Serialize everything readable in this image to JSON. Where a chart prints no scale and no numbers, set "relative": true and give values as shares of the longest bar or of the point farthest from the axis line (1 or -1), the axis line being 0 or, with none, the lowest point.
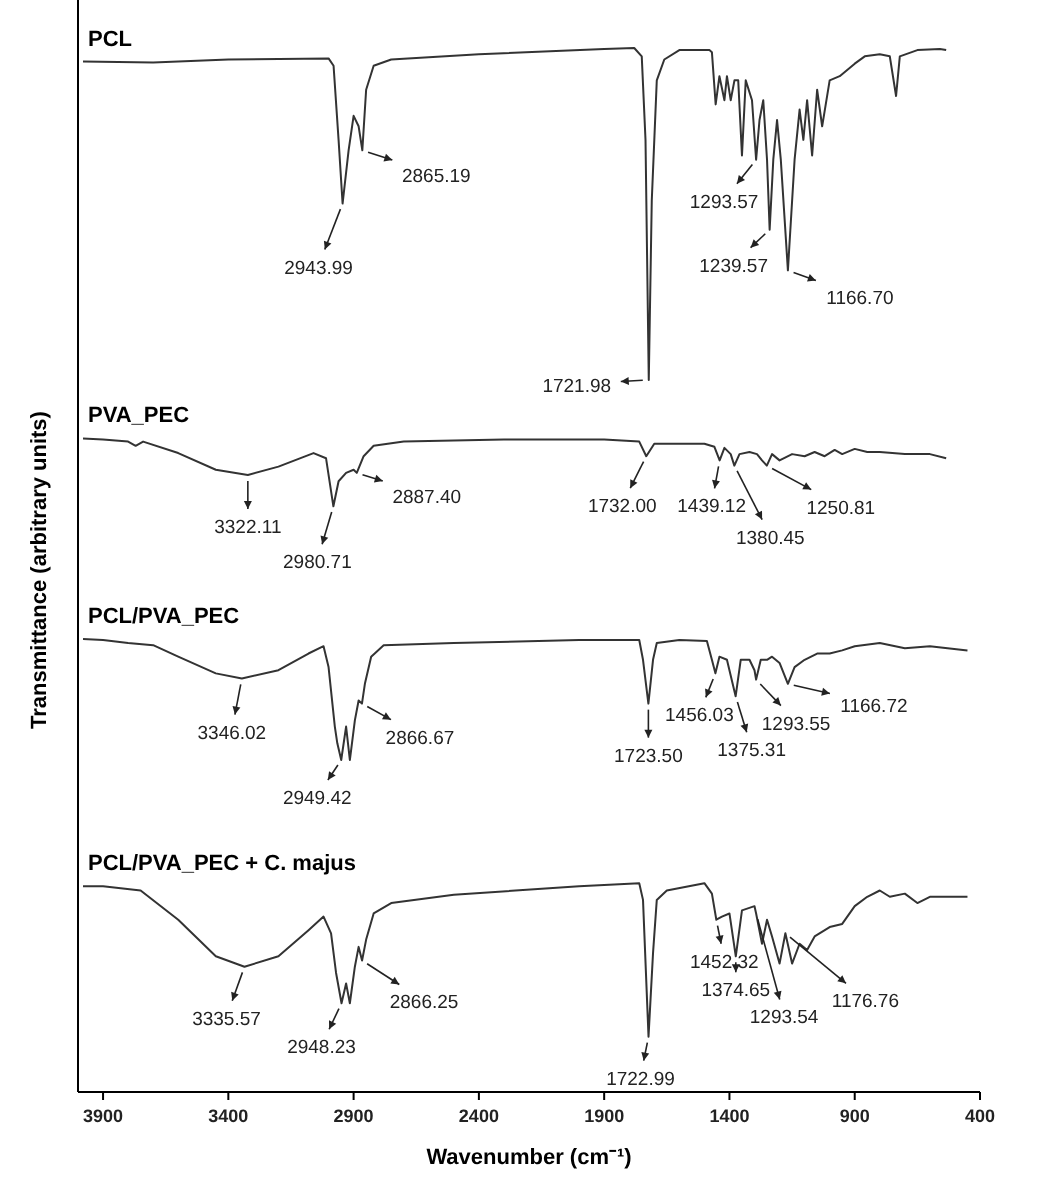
{
  "chart_data": {
    "type": "line",
    "relative": true,
    "xlabel": "Wavenumber (cm⁻¹)",
    "ylabel": "Transmittance (arbitrary units)",
    "xlim": [
      4000,
      400
    ],
    "xticks": [
      3900,
      3400,
      2900,
      2400,
      1900,
      1400,
      900,
      400
    ],
    "marker": "none",
    "series": [
      {
        "name": "PCL",
        "color": "#333333",
        "x": [
          3980,
          3700,
          3400,
          3000,
          2980,
          2960,
          2943.99,
          2920,
          2900,
          2880,
          2865.19,
          2850,
          2820,
          2750,
          2400,
          1900,
          1780,
          1750,
          1735,
          1721.98,
          1710,
          1690,
          1660,
          1600,
          1480,
          1470,
          1455,
          1440,
          1420,
          1410,
          1395,
          1380,
          1365,
          1350,
          1335,
          1310,
          1293.57,
          1280,
          1265,
          1250,
          1239.57,
          1225,
          1210,
          1195,
          1166.7,
          1140,
          1120,
          1105,
          1090,
          1070,
          1050,
          1030,
          1000,
          960,
          900,
          860,
          800,
          760,
          735,
          720,
          650,
          560,
          535
        ],
        "values": [
          0.987,
          0.986,
          0.989,
          0.99,
          0.983,
          0.912,
          0.851,
          0.902,
          0.935,
          0.925,
          0.902,
          0.96,
          0.983,
          0.989,
          0.994,
          0.999,
          1,
          0.992,
          0.912,
          0.682,
          0.854,
          0.969,
          0.989,
          0.998,
          0.998,
          0.996,
          0.946,
          0.973,
          0.95,
          0.973,
          0.95,
          0.969,
          0.969,
          0.897,
          0.969,
          0.95,
          0.893,
          0.931,
          0.95,
          0.893,
          0.826,
          0.893,
          0.931,
          0.893,
          0.787,
          0.893,
          0.941,
          0.912,
          0.95,
          0.897,
          0.96,
          0.925,
          0.969,
          0.973,
          0.985,
          0.992,
          0.994,
          0.992,
          0.954,
          0.992,
          0.998,
          0.999,
          0.998
        ]
      },
      {
        "name": "PVA_PEC",
        "color": "#333333",
        "x": [
          3980,
          3900,
          3800,
          3770,
          3740,
          3600,
          3450,
          3322.11,
          3200,
          3060,
          3010,
          2980.71,
          2960,
          2930,
          2900,
          2887.4,
          2860,
          2820,
          2700,
          2300,
          1900,
          1760,
          1732,
          1700,
          1500,
          1460,
          1439.12,
          1420,
          1395,
          1380.45,
          1360,
          1320,
          1290,
          1270,
          1250.81,
          1230,
          1200,
          1150,
          1100,
          1060,
          1020,
          980,
          950,
          900,
          850,
          800,
          700,
          600,
          535
        ],
        "values": [
          0.626,
          0.625,
          0.623,
          0.619,
          0.623,
          0.612,
          0.596,
          0.591,
          0.599,
          0.612,
          0.607,
          0.561,
          0.585,
          0.593,
          0.596,
          0.593,
          0.609,
          0.619,
          0.623,
          0.625,
          0.625,
          0.623,
          0.609,
          0.621,
          0.621,
          0.618,
          0.605,
          0.617,
          0.611,
          0.6,
          0.611,
          0.613,
          0.611,
          0.605,
          0.6,
          0.611,
          0.605,
          0.611,
          0.609,
          0.613,
          0.609,
          0.615,
          0.611,
          0.616,
          0.613,
          0.613,
          0.611,
          0.611,
          0.607
        ]
      },
      {
        "name": "PCL/PVA_PEC",
        "color": "#333333",
        "x": [
          3980,
          3900,
          3800,
          3700,
          3600,
          3450,
          3346.02,
          3200,
          3080,
          3020,
          3000,
          2975,
          2965,
          2949.42,
          2930,
          2915,
          2895,
          2880,
          2866.67,
          2855,
          2830,
          2780,
          2500,
          2000,
          1760,
          1745,
          1723.5,
          1705,
          1690,
          1600,
          1490,
          1470,
          1456.03,
          1440,
          1410,
          1375.31,
          1355,
          1320,
          1300,
          1293.55,
          1275,
          1250,
          1230,
          1200,
          1166.72,
          1140,
          1100,
          1050,
          1000,
          950,
          900,
          800,
          700,
          600,
          450
        ],
        "values": [
          0.434,
          0.433,
          0.43,
          0.428,
          0.417,
          0.401,
          0.396,
          0.404,
          0.42,
          0.427,
          0.407,
          0.35,
          0.334,
          0.318,
          0.35,
          0.318,
          0.356,
          0.375,
          0.372,
          0.391,
          0.417,
          0.428,
          0.43,
          0.433,
          0.433,
          0.414,
          0.372,
          0.414,
          0.43,
          0.433,
          0.432,
          0.414,
          0.401,
          0.417,
          0.414,
          0.379,
          0.414,
          0.414,
          0.404,
          0.395,
          0.414,
          0.414,
          0.417,
          0.411,
          0.391,
          0.407,
          0.414,
          0.42,
          0.42,
          0.423,
          0.427,
          0.43,
          0.425,
          0.427,
          0.423
        ]
      },
      {
        "name": "PCL/PVA_PEC + C. majus",
        "color": "#333333",
        "x": [
          3980,
          3900,
          3750,
          3600,
          3450,
          3335.57,
          3200,
          3080,
          3020,
          2990,
          2970,
          2948.23,
          2930,
          2915,
          2895,
          2880,
          2866.25,
          2850,
          2820,
          2750,
          2500,
          2000,
          1760,
          1745,
          1722.99,
          1705,
          1690,
          1650,
          1500,
          1470,
          1452.32,
          1430,
          1400,
          1374.65,
          1350,
          1300,
          1293.54,
          1270,
          1250,
          1230,
          1200,
          1176.76,
          1150,
          1120,
          1090,
          1060,
          1000,
          950,
          900,
          850,
          800,
          760,
          700,
          650,
          600,
          450
        ],
        "values": [
          0.197,
          0.197,
          0.193,
          0.165,
          0.13,
          0.12,
          0.13,
          0.155,
          0.168,
          0.152,
          0.114,
          0.085,
          0.104,
          0.085,
          0.12,
          0.139,
          0.126,
          0.146,
          0.171,
          0.181,
          0.189,
          0.197,
          0.2,
          0.184,
          0.053,
          0.133,
          0.184,
          0.193,
          0.2,
          0.19,
          0.165,
          0.168,
          0.171,
          0.13,
          0.174,
          0.178,
          0.171,
          0.142,
          0.165,
          0.149,
          0.123,
          0.152,
          0.123,
          0.142,
          0.136,
          0.149,
          0.158,
          0.161,
          0.178,
          0.187,
          0.193,
          0.187,
          0.19,
          0.181,
          0.187,
          0.187
        ]
      }
    ],
    "annotations": [
      {
        "text": "2865.19",
        "x": 2865.19,
        "y": 0.902
      },
      {
        "text": "2943.99",
        "x": 2943.99,
        "y": 0.851
      },
      {
        "text": "1721.98",
        "x": 1721.98,
        "y": 0.682
      },
      {
        "text": "1293.57",
        "x": 1293.57,
        "y": 0.893
      },
      {
        "text": "1239.57",
        "x": 1239.57,
        "y": 0.826
      },
      {
        "text": "1166.70",
        "x": 1166.7,
        "y": 0.787
      },
      {
        "text": "3322.11",
        "x": 3322.11,
        "y": 0.591
      },
      {
        "text": "2980.71",
        "x": 2980.71,
        "y": 0.561
      },
      {
        "text": "2887.40",
        "x": 2887.4,
        "y": 0.593
      },
      {
        "text": "1732.00",
        "x": 1732.0,
        "y": 0.609
      },
      {
        "text": "1439.12",
        "x": 1439.12,
        "y": 0.605
      },
      {
        "text": "1380.45",
        "x": 1380.45,
        "y": 0.6
      },
      {
        "text": "1250.81",
        "x": 1250.81,
        "y": 0.6
      },
      {
        "text": "3346.02",
        "x": 3346.02,
        "y": 0.396
      },
      {
        "text": "2949.42",
        "x": 2949.42,
        "y": 0.318
      },
      {
        "text": "2866.67",
        "x": 2866.67,
        "y": 0.372
      },
      {
        "text": "1723.50",
        "x": 1723.5,
        "y": 0.372
      },
      {
        "text": "1456.03",
        "x": 1456.03,
        "y": 0.401
      },
      {
        "text": "1375.31",
        "x": 1375.31,
        "y": 0.379
      },
      {
        "text": "1293.55",
        "x": 1293.55,
        "y": 0.395
      },
      {
        "text": "1166.72",
        "x": 1166.72,
        "y": 0.391
      },
      {
        "text": "3335.57",
        "x": 3335.57,
        "y": 0.12
      },
      {
        "text": "2948.23",
        "x": 2948.23,
        "y": 0.085
      },
      {
        "text": "2866.25",
        "x": 2866.25,
        "y": 0.126
      },
      {
        "text": "1722.99",
        "x": 1722.99,
        "y": 0.053
      },
      {
        "text": "1452.32",
        "x": 1452.32,
        "y": 0.165
      },
      {
        "text": "1374.65",
        "x": 1374.65,
        "y": 0.13
      },
      {
        "text": "1293.54",
        "x": 1293.54,
        "y": 0.171
      },
      {
        "text": "1176.76",
        "x": 1176.76,
        "y": 0.152
      }
    ]
  }
}
